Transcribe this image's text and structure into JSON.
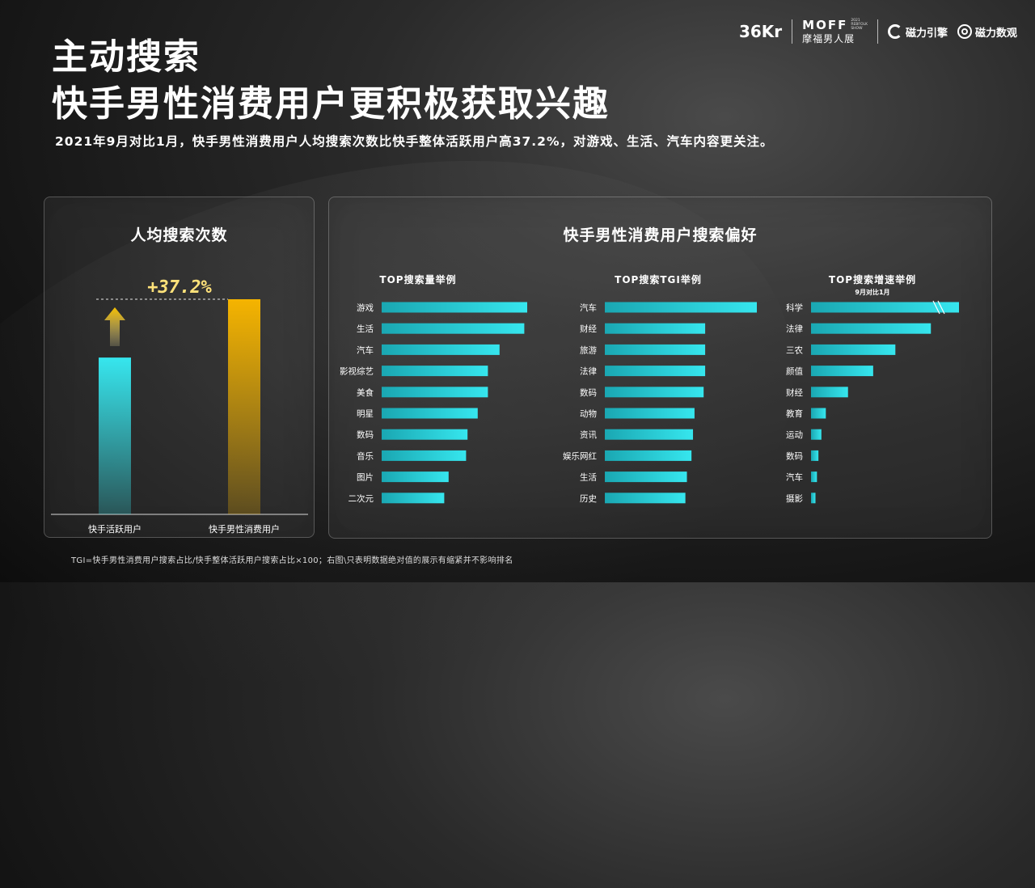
{
  "header": {
    "title_line1": "主动搜索",
    "title_line2": "快手男性消费用户更积极获取兴趣",
    "subtitle": "2021年9月对比1月，快手男性消费用户人均搜索次数比快手整体活跃用户高37.2%，对游戏、生活、汽车内容更关注。"
  },
  "logos": {
    "kr": "36Kr",
    "moff": "MOFF",
    "moff_small": "2021\nREBFOLK\nSHOW",
    "moff_cn": "摩福男人展",
    "cili_yinqing": "磁力引擎",
    "cili_shuguan": "磁力数观"
  },
  "colors": {
    "cyan": "#36e6ee",
    "gold": "#f5b400",
    "gold_text": "#ffe27a"
  },
  "footnote": "TGI=快手男性消费用户搜索占比/快手整体活跃用户搜索占比×100；右图\\只表明数据绝对值的展示有缩紧并不影响排名",
  "chart_data": [
    {
      "type": "bar",
      "title": "人均搜索次数",
      "categories": [
        "快手活跃用户",
        "快手男性消费用户"
      ],
      "values": [
        100,
        137.2
      ],
      "annotation": "+37.2%"
    },
    {
      "type": "bar",
      "title": "快手男性消费用户搜索偏好",
      "panels": [
        {
          "title": "TOP搜索量举例",
          "subtitle": "",
          "categories": [
            "游戏",
            "生活",
            "汽车",
            "影视综艺",
            "美食",
            "明星",
            "数码",
            "音乐",
            "图片",
            "二次元"
          ],
          "values": [
            100,
            98,
            81,
            73,
            73,
            66,
            59,
            58,
            46,
            43
          ]
        },
        {
          "title": "TOP搜索TGI举例",
          "subtitle": "",
          "categories": [
            "汽车",
            "财经",
            "旅游",
            "法律",
            "数码",
            "动物",
            "资讯",
            "娱乐网红",
            "生活",
            "历史"
          ],
          "values": [
            100,
            66,
            66,
            66,
            65,
            59,
            58,
            57,
            54,
            53
          ]
        },
        {
          "title": "TOP搜索增速举例",
          "subtitle": "9月对比1月",
          "categories": [
            "科学",
            "法律",
            "三农",
            "颜值",
            "财经",
            "教育",
            "运动",
            "数码",
            "汽车",
            "摄影"
          ],
          "values": [
            100,
            81,
            57,
            42,
            25,
            10,
            7,
            5,
            4,
            3
          ]
        }
      ]
    }
  ]
}
